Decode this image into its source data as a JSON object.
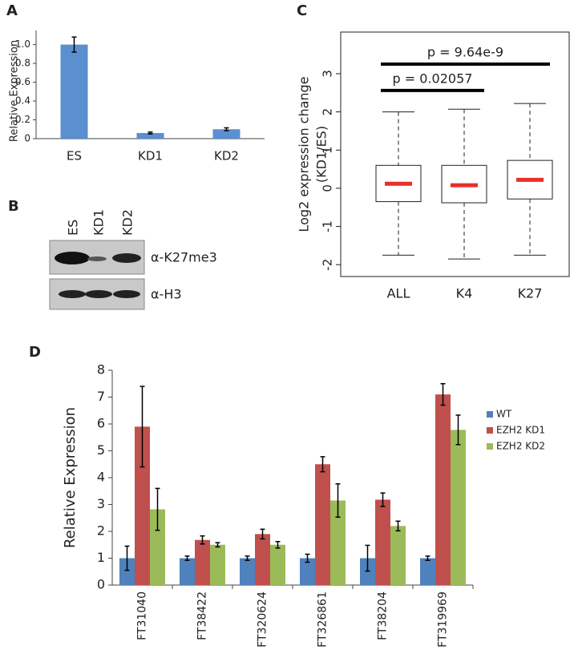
{
  "chart_data": [
    {
      "type": "bar",
      "panel": "A",
      "ylabel": "Relative Expression",
      "categories": [
        "ES",
        "KD1",
        "KD2"
      ],
      "values": [
        1,
        0.06,
        0.1
      ],
      "errors": [
        0.08,
        0.01,
        0.015
      ],
      "color": "#5b8fd0",
      "ylim": [
        0,
        1.15
      ],
      "yticks": [
        0,
        0.2,
        0.4,
        0.6,
        0.8,
        {
          "value": 1,
          "label": "1.0"
        }
      ]
    },
    {
      "type": "box",
      "panel": "C",
      "ylabel": [
        "Log2 expression change",
        "(KD1/ES)"
      ],
      "categories": [
        "ALL",
        "K4",
        "K27"
      ],
      "boxes": [
        {
          "low": -1.75,
          "q1": -0.35,
          "median": 0.12,
          "q3": 0.6,
          "high": 2.0
        },
        {
          "low": -1.85,
          "q1": -0.38,
          "median": 0.08,
          "q3": 0.6,
          "high": 2.07
        },
        {
          "low": -1.75,
          "q1": -0.28,
          "median": 0.22,
          "q3": 0.73,
          "high": 2.22
        }
      ],
      "median_color": "#e8302a",
      "ylim": [
        -2.31,
        4.09
      ],
      "yticks": [
        -2,
        -1,
        0,
        1,
        2,
        3
      ],
      "annotations": [
        {
          "text": "p = 0.02057",
          "y": 2.56,
          "from": "ALL",
          "to": "K4"
        },
        {
          "text": "p = 9.64e-9",
          "y": 3.25,
          "from": "ALL",
          "to": "K27"
        }
      ]
    },
    {
      "type": "grouped-bar",
      "panel": "D",
      "ylabel": "Relative Expression",
      "categories": [
        "FT31040",
        "FT38422",
        "FT320624",
        "FT326861",
        "FT38204",
        "FT319969"
      ],
      "series": [
        {
          "name": "WT",
          "color": "#4f81bd",
          "values": [
            1,
            1,
            1,
            1,
            1,
            1
          ],
          "errors": [
            0.45,
            0.08,
            0.08,
            0.15,
            0.48,
            0.08
          ]
        },
        {
          "name": "EZH2 KD1",
          "color": "#c0504d",
          "values": [
            5.9,
            1.68,
            1.9,
            4.5,
            3.18,
            7.1
          ],
          "errors": [
            1.5,
            0.15,
            0.18,
            0.28,
            0.25,
            0.4
          ]
        },
        {
          "name": "EZH2 KD2",
          "color": "#9bbb59",
          "values": [
            2.82,
            1.5,
            1.5,
            3.15,
            2.2,
            5.78
          ],
          "errors": [
            0.78,
            0.08,
            0.12,
            0.62,
            0.18,
            0.55
          ]
        }
      ],
      "ylim": [
        0,
        8
      ],
      "yticks": [
        0,
        1,
        2,
        3,
        4,
        5,
        6,
        7,
        8
      ],
      "legend": "right"
    }
  ],
  "blot": {
    "panel": "B",
    "lanes": [
      "ES",
      "KD1",
      "KD2"
    ],
    "rows": [
      "α-K27me3",
      "α-H3"
    ]
  }
}
